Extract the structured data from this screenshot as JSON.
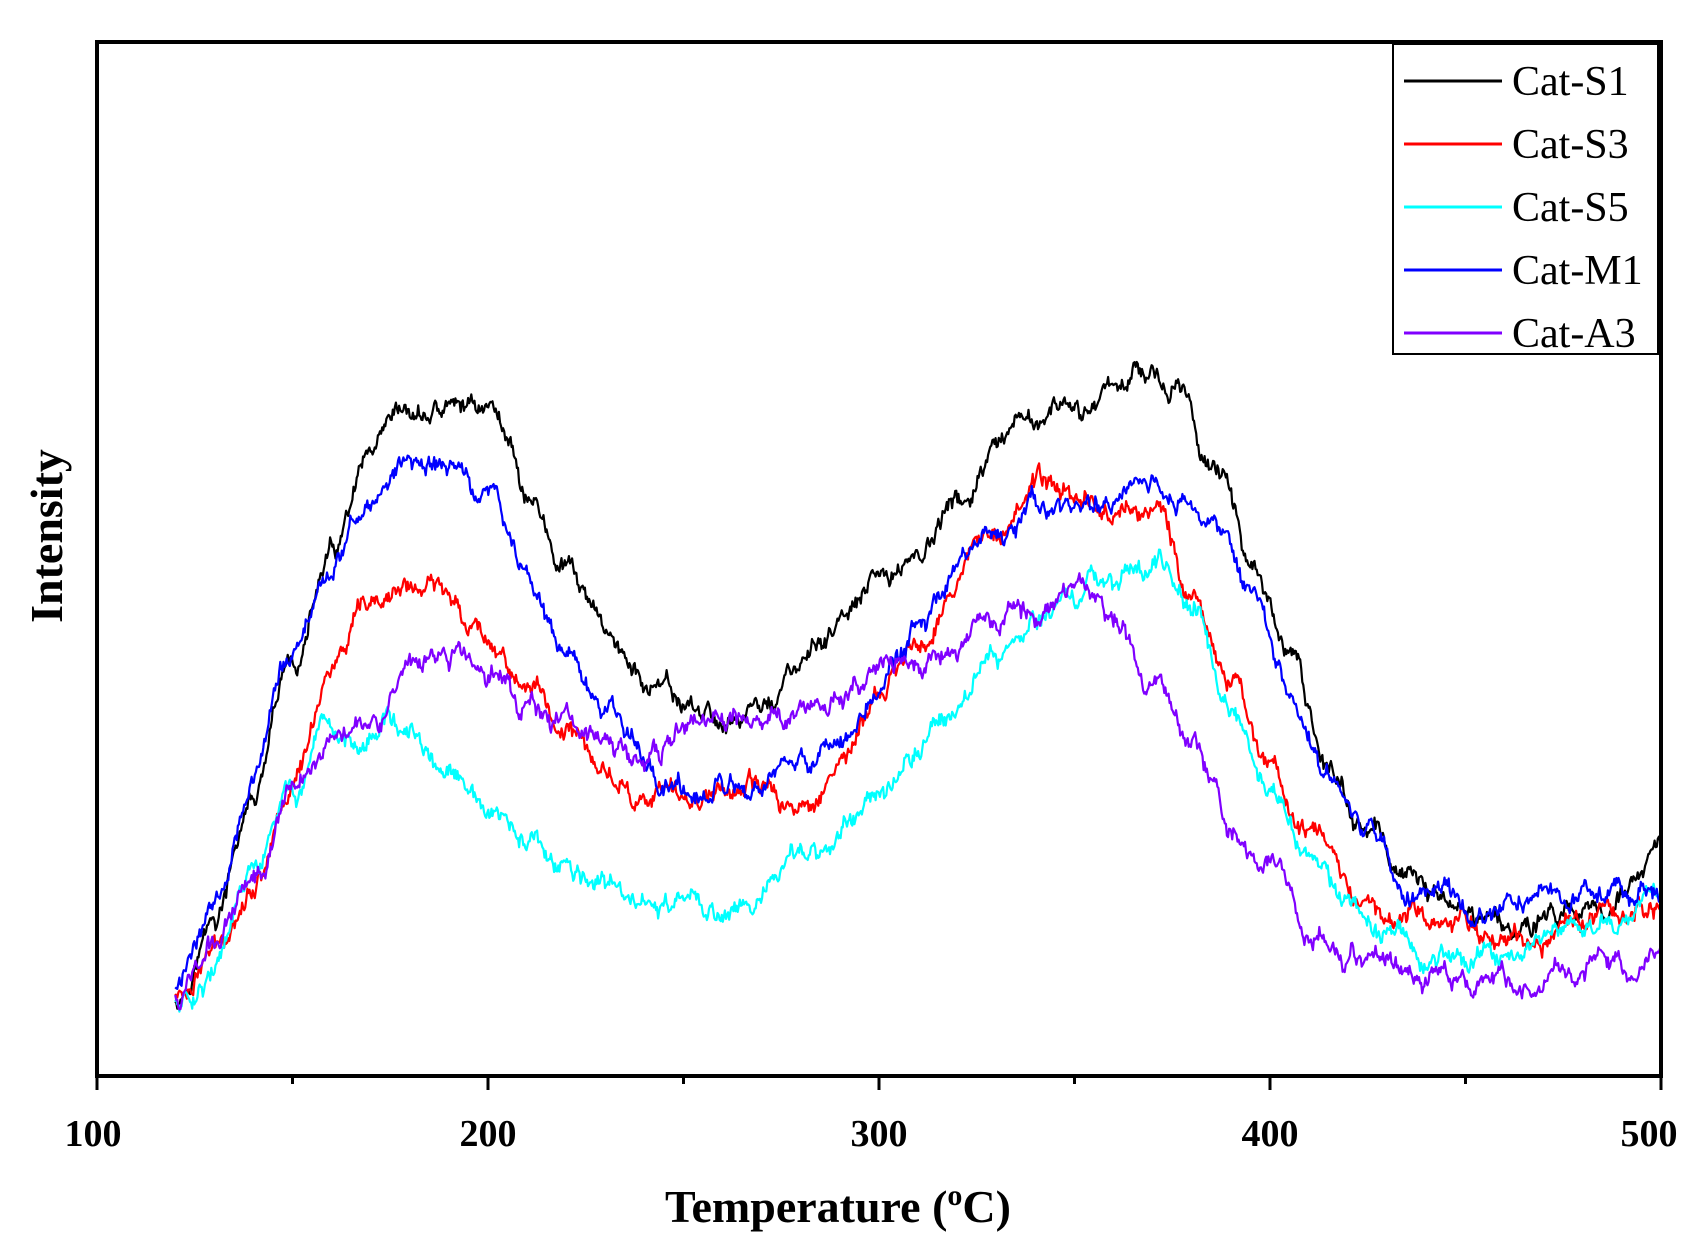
{
  "chart_data": {
    "type": "line",
    "title": "",
    "xlabel": "Temperature (",
    "xlabel_sup": "o",
    "xlabel_suffix": "C)",
    "ylabel": "Intensity",
    "xlim": [
      100,
      500
    ],
    "ylim": [
      0,
      100
    ],
    "y_ticks_shown": false,
    "grid": false,
    "legend_position": "top-right",
    "x_ticks": [
      100,
      200,
      300,
      400,
      500
    ],
    "x_tick_labels": [
      "100",
      "200",
      "300",
      "400",
      "500"
    ],
    "x_minor_ticks": [
      150,
      250,
      350,
      450
    ],
    "series": [
      {
        "name": "Cat-S1",
        "color": "#000000",
        "x": [
          120,
          130,
          140,
          150,
          160,
          170,
          180,
          190,
          200,
          205,
          210,
          220,
          230,
          240,
          250,
          260,
          270,
          280,
          290,
          300,
          310,
          320,
          330,
          340,
          345,
          350,
          360,
          368,
          375,
          385,
          395,
          405,
          415,
          425,
          435,
          445,
          455,
          465,
          475,
          485,
          495,
          500
        ],
        "y": [
          6,
          16,
          32,
          50,
          65,
          77,
          83,
          85,
          86,
          82,
          74,
          63,
          55,
          48,
          45,
          43,
          45,
          50,
          56,
          61,
          66,
          72,
          78,
          83,
          85,
          83,
          89,
          92,
          88,
          79,
          66,
          51,
          37,
          28,
          22,
          18,
          17,
          16,
          17,
          19,
          22,
          25
        ]
      },
      {
        "name": "Cat-S3",
        "color": "#ff0000",
        "x": [
          120,
          130,
          140,
          150,
          160,
          170,
          180,
          190,
          200,
          210,
          220,
          230,
          240,
          250,
          260,
          270,
          280,
          290,
          300,
          310,
          320,
          330,
          340,
          350,
          360,
          370,
          380,
          390,
          400,
          410,
          420,
          430,
          440,
          450,
          460,
          470,
          480,
          490,
          500
        ],
        "y": [
          6,
          12,
          22,
          35,
          51,
          57,
          61,
          60,
          55,
          48,
          42,
          36,
          33,
          32,
          35,
          33,
          31,
          38,
          46,
          53,
          63,
          71,
          75,
          74,
          72,
          72,
          61,
          49,
          37,
          27,
          21,
          18,
          17,
          16,
          15,
          15,
          16,
          17,
          18
        ]
      },
      {
        "name": "Cat-S5",
        "color": "#00ffff",
        "x": [
          120,
          130,
          140,
          150,
          160,
          170,
          175,
          180,
          190,
          200,
          210,
          220,
          230,
          240,
          250,
          255,
          260,
          270,
          280,
          290,
          300,
          310,
          320,
          330,
          340,
          350,
          360,
          370,
          380,
          390,
          400,
          410,
          420,
          430,
          440,
          450,
          460,
          470,
          480,
          490,
          500
        ],
        "y": [
          5,
          10,
          22,
          33,
          39,
          42,
          44,
          40,
          35,
          30,
          26,
          22,
          20,
          18,
          18,
          17,
          17,
          21,
          24,
          28,
          35,
          40,
          46,
          53,
          57,
          60,
          63,
          64,
          60,
          45,
          33,
          25,
          18,
          15,
          12,
          12,
          13,
          14,
          16,
          17,
          19
        ]
      },
      {
        "name": "Cat-M1",
        "color": "#0000ff",
        "x": [
          120,
          130,
          140,
          150,
          160,
          170,
          180,
          190,
          200,
          210,
          220,
          230,
          240,
          250,
          260,
          270,
          280,
          290,
          300,
          310,
          320,
          330,
          340,
          350,
          360,
          368,
          375,
          385,
          395,
          405,
          415,
          425,
          435,
          445,
          455,
          465,
          475,
          485,
          495,
          500
        ],
        "y": [
          7,
          19,
          37,
          52,
          64,
          73,
          78,
          77,
          74,
          63,
          52,
          44,
          38,
          34,
          33,
          33,
          36,
          41,
          48,
          55,
          62,
          67,
          71,
          71,
          74,
          75,
          73,
          70,
          61,
          47,
          35,
          27,
          21,
          19,
          18,
          18,
          19,
          20,
          20,
          21
        ]
      },
      {
        "name": "Cat-A3",
        "color": "#8000ff",
        "x": [
          120,
          130,
          140,
          150,
          160,
          170,
          180,
          190,
          200,
          210,
          220,
          230,
          240,
          250,
          260,
          270,
          280,
          290,
          300,
          310,
          320,
          330,
          340,
          345,
          350,
          360,
          370,
          380,
          390,
          400,
          410,
          420,
          430,
          440,
          450,
          460,
          470,
          480,
          490,
          500
        ],
        "y": [
          6,
          13,
          23,
          34,
          42,
          45,
          48,
          52,
          50,
          46,
          43,
          40,
          37,
          42,
          42,
          43,
          45,
          47,
          49,
          50,
          53,
          56,
          59,
          62,
          61,
          56,
          48,
          40,
          30,
          24,
          15,
          12,
          10,
          10,
          9,
          9,
          9,
          9,
          9,
          10
        ]
      }
    ]
  }
}
